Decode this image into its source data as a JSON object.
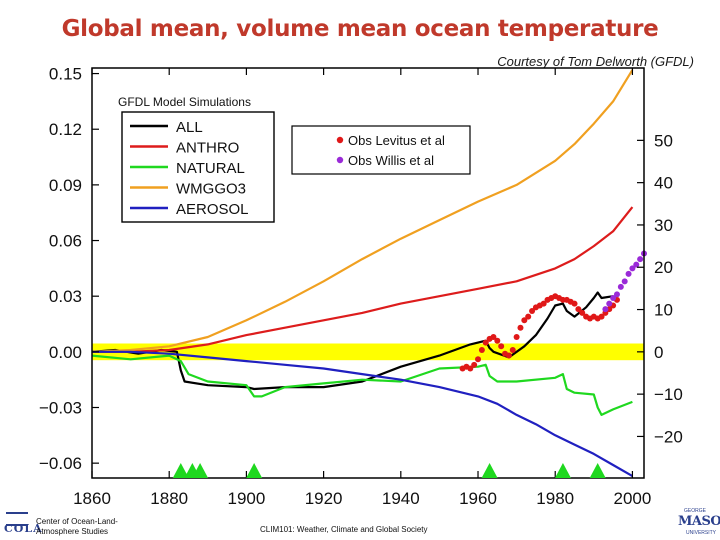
{
  "slide": {
    "title": "Global mean, volume mean ocean temperature",
    "credit": "Courtesy of Tom Delworth (GFDL)",
    "footer_org_line1": "Center of Ocean-Land-",
    "footer_org_line2": "Atmosphere Studies",
    "footer_org_logo": "COLA",
    "footer_course": "CLIM101: Weather, Climate and Global Society",
    "footer_univ_logo": "MASON",
    "footer_univ_top": "GEORGE",
    "footer_univ_bottom": "UNIVERSITY"
  },
  "colors": {
    "title": "#c0392b",
    "ALL": "#000000",
    "ANTHRO": "#dd1c1c",
    "NATURAL": "#1fd81f",
    "WMGGO3": "#f0a020",
    "AEROSOL": "#2020c0",
    "obs_levitus": "#e01818",
    "obs_willis": "#9a2ad8",
    "zero_band": "#ffff00",
    "volcano": "#1fd81f"
  },
  "chart_data": {
    "type": "line",
    "inner_label": "GFDL Model Simulations",
    "xlim": [
      1860,
      2003
    ],
    "ylim": [
      -0.068,
      0.153
    ],
    "x_ticks": [
      1860,
      1880,
      1900,
      1920,
      1940,
      1960,
      1980,
      2000
    ],
    "y_ticks": [
      {
        "v": 0.15,
        "label": "0.15"
      },
      {
        "v": 0.12,
        "label": "0.12"
      },
      {
        "v": 0.09,
        "label": "0.09"
      },
      {
        "v": 0.06,
        "label": "0.06"
      },
      {
        "v": 0.03,
        "label": "0.03"
      },
      {
        "v": 0.0,
        "label": "0.00"
      },
      {
        "v": -0.03,
        "label": "−0.03"
      },
      {
        "v": -0.06,
        "label": "−0.06"
      }
    ],
    "y2_ticks": [
      {
        "v": 0.114,
        "label": "50"
      },
      {
        "v": 0.0912,
        "label": "40"
      },
      {
        "v": 0.0684,
        "label": "30"
      },
      {
        "v": 0.0456,
        "label": "20"
      },
      {
        "v": 0.0228,
        "label": "10"
      },
      {
        "v": 0.0,
        "label": "0"
      },
      {
        "v": -0.0228,
        "label": "−10"
      },
      {
        "v": -0.0456,
        "label": "−20"
      }
    ],
    "zero_band": [
      -0.0045,
      0.0045
    ],
    "volcano_markers": [
      1883,
      1886,
      1888,
      1902,
      1963,
      1982,
      1991
    ],
    "series": [
      {
        "name": "ALL",
        "color_key": "ALL",
        "x": [
          1860,
          1866,
          1872,
          1878,
          1882,
          1883,
          1884,
          1890,
          1900,
          1902,
          1910,
          1920,
          1930,
          1940,
          1950,
          1958,
          1962,
          1963,
          1964,
          1968,
          1972,
          1975,
          1978,
          1980,
          1982,
          1983,
          1985,
          1988,
          1990,
          1991,
          1992,
          1995
        ],
        "y": [
          0.0,
          0.001,
          -0.001,
          0.001,
          0.0,
          -0.01,
          -0.016,
          -0.018,
          -0.019,
          -0.02,
          -0.019,
          -0.019,
          -0.016,
          -0.008,
          -0.002,
          0.004,
          0.006,
          0.002,
          0.0,
          -0.003,
          0.003,
          0.009,
          0.018,
          0.025,
          0.026,
          0.022,
          0.019,
          0.024,
          0.029,
          0.032,
          0.029,
          0.03
        ]
      },
      {
        "name": "ANTHRO",
        "color_key": "ANTHRO",
        "x": [
          1860,
          1870,
          1880,
          1890,
          1900,
          1910,
          1920,
          1930,
          1940,
          1950,
          1960,
          1970,
          1980,
          1985,
          1990,
          1995,
          2000
        ],
        "y": [
          0.0,
          0.0,
          0.001,
          0.004,
          0.009,
          0.013,
          0.017,
          0.021,
          0.026,
          0.03,
          0.034,
          0.038,
          0.045,
          0.05,
          0.057,
          0.065,
          0.078
        ]
      },
      {
        "name": "NATURAL",
        "color_key": "NATURAL",
        "x": [
          1860,
          1870,
          1880,
          1883,
          1885,
          1890,
          1900,
          1902,
          1904,
          1910,
          1920,
          1930,
          1940,
          1950,
          1960,
          1962,
          1963,
          1965,
          1970,
          1980,
          1982,
          1983,
          1985,
          1990,
          1991,
          1992,
          1995,
          2000
        ],
        "y": [
          -0.002,
          -0.004,
          -0.002,
          -0.005,
          -0.012,
          -0.016,
          -0.018,
          -0.024,
          -0.024,
          -0.019,
          -0.017,
          -0.015,
          -0.016,
          -0.009,
          -0.008,
          -0.007,
          -0.013,
          -0.016,
          -0.016,
          -0.014,
          -0.012,
          -0.02,
          -0.022,
          -0.023,
          -0.03,
          -0.034,
          -0.031,
          -0.027
        ]
      },
      {
        "name": "WMGGO3",
        "color_key": "WMGGO3",
        "x": [
          1860,
          1870,
          1880,
          1890,
          1900,
          1910,
          1920,
          1930,
          1940,
          1950,
          1960,
          1970,
          1980,
          1985,
          1990,
          1995,
          2000
        ],
        "y": [
          0.0,
          0.001,
          0.003,
          0.008,
          0.017,
          0.027,
          0.038,
          0.05,
          0.061,
          0.071,
          0.081,
          0.09,
          0.103,
          0.112,
          0.123,
          0.135,
          0.152
        ]
      },
      {
        "name": "AEROSOL",
        "color_key": "AEROSOL",
        "x": [
          1860,
          1870,
          1880,
          1890,
          1900,
          1910,
          1920,
          1930,
          1940,
          1950,
          1960,
          1965,
          1970,
          1975,
          1980,
          1985,
          1990,
          1995,
          2000
        ],
        "y": [
          0.0,
          0.0,
          -0.001,
          -0.003,
          -0.005,
          -0.007,
          -0.009,
          -0.012,
          -0.015,
          -0.019,
          -0.024,
          -0.028,
          -0.034,
          -0.039,
          -0.045,
          -0.05,
          -0.055,
          -0.061,
          -0.067
        ]
      }
    ],
    "obs": [
      {
        "name": "Obs Levitus et al",
        "color_key": "obs_levitus",
        "x": [
          1956,
          1957,
          1958,
          1959,
          1960,
          1961,
          1962,
          1963,
          1964,
          1965,
          1966,
          1967,
          1968,
          1969,
          1970,
          1971,
          1972,
          1973,
          1974,
          1975,
          1976,
          1977,
          1978,
          1979,
          1980,
          1981,
          1982,
          1983,
          1984,
          1985,
          1986,
          1987,
          1988,
          1989,
          1990,
          1991,
          1992,
          1993,
          1994,
          1995,
          1996
        ],
        "y": [
          -0.009,
          -0.008,
          -0.009,
          -0.007,
          -0.004,
          0.001,
          0.005,
          0.007,
          0.008,
          0.006,
          0.003,
          -0.001,
          -0.002,
          0.001,
          0.008,
          0.013,
          0.017,
          0.019,
          0.022,
          0.024,
          0.025,
          0.026,
          0.028,
          0.029,
          0.03,
          0.029,
          0.028,
          0.028,
          0.027,
          0.026,
          0.023,
          0.021,
          0.019,
          0.018,
          0.019,
          0.018,
          0.019,
          0.021,
          0.023,
          0.025,
          0.028
        ]
      },
      {
        "name": "Obs Willis et al",
        "color_key": "obs_willis",
        "x": [
          1993,
          1994,
          1995,
          1996,
          1997,
          1998,
          1999,
          2000,
          2001,
          2002,
          2003
        ],
        "y": [
          0.023,
          0.026,
          0.029,
          0.031,
          0.035,
          0.038,
          0.042,
          0.045,
          0.047,
          0.05,
          0.053
        ]
      }
    ],
    "legend_lines": [
      "ALL",
      "ANTHRO",
      "NATURAL",
      "WMGGO3",
      "AEROSOL"
    ],
    "legend_obs": [
      "Obs Levitus et al",
      "Obs Willis et al"
    ]
  }
}
